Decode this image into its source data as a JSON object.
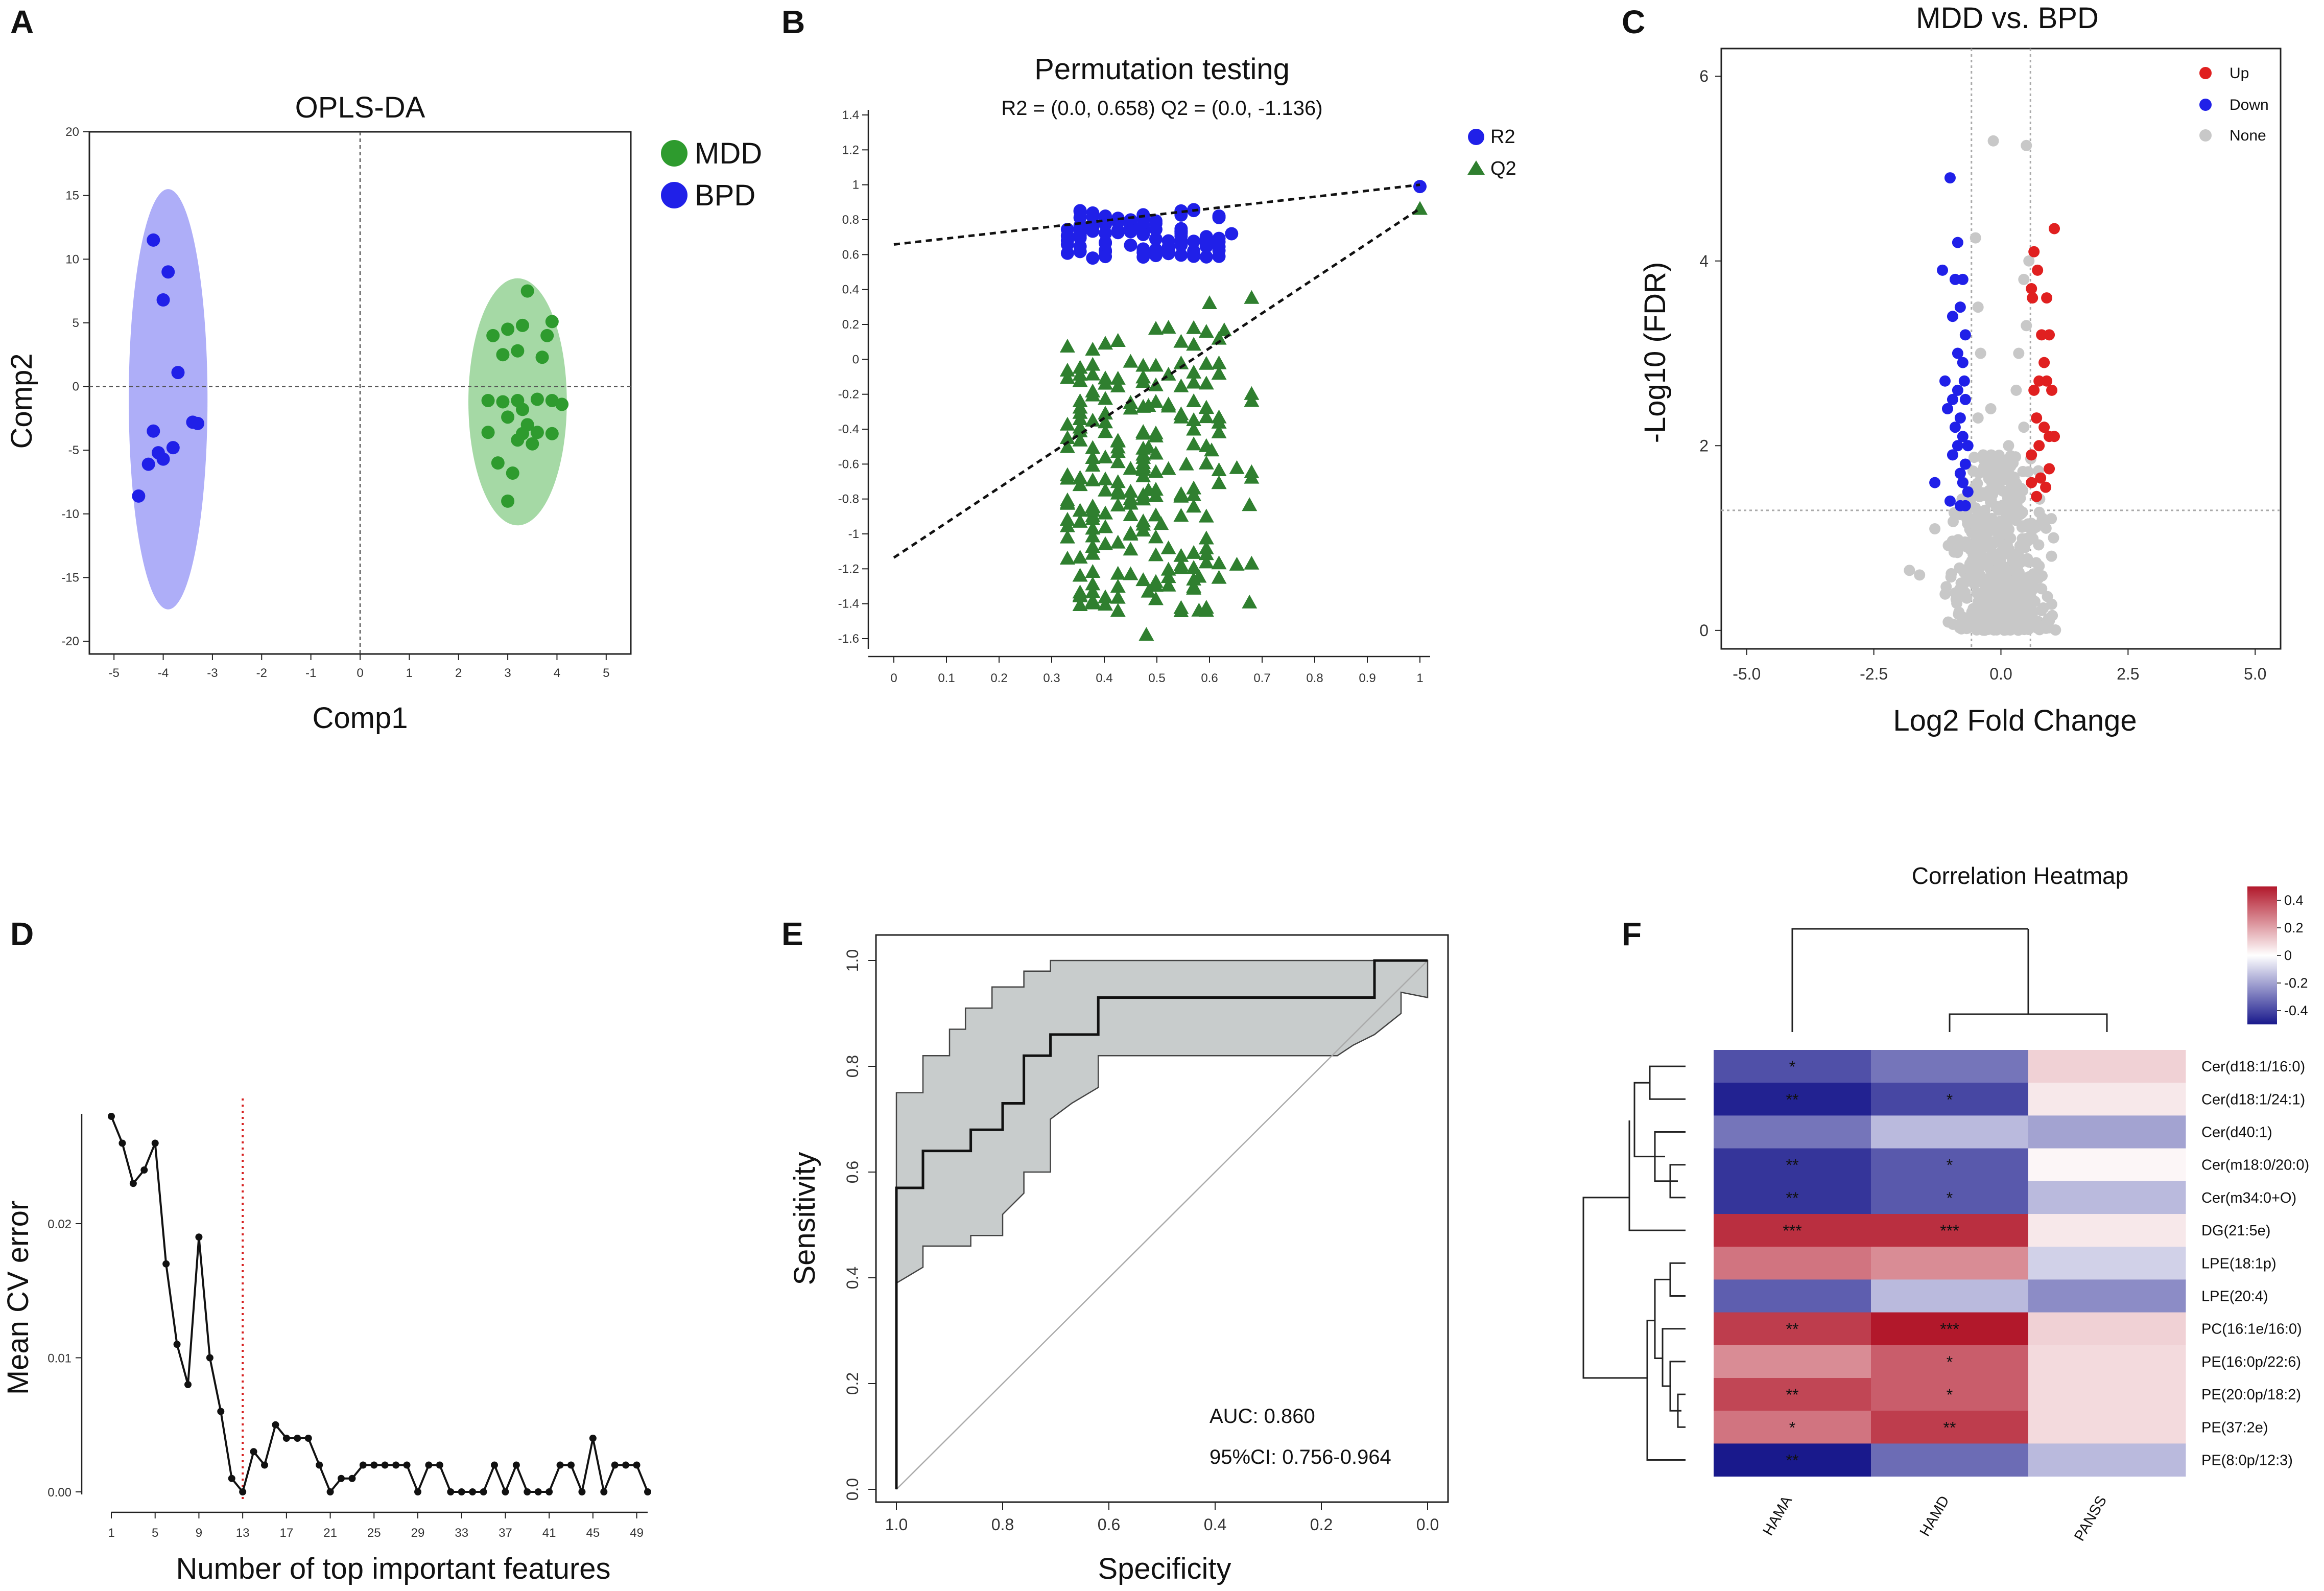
{
  "panels": {
    "A": "A",
    "B": "B",
    "C": "C",
    "D": "D",
    "E": "E",
    "F": "F"
  },
  "chart_data": [
    {
      "panel": "A",
      "type": "scatter",
      "title": "OPLS-DA",
      "xlabel": "Comp1",
      "ylabel": "Comp2",
      "xlim": [
        -5.5,
        5.5
      ],
      "ylim": [
        -21,
        20
      ],
      "xticks": [
        -5,
        -4,
        -3,
        -2,
        -1,
        0,
        1,
        2,
        3,
        4,
        5
      ],
      "yticks": [
        20,
        15,
        10,
        5,
        0,
        -5,
        -10,
        -15,
        -20
      ],
      "legend": "top-right",
      "series": [
        {
          "name": "MDD",
          "color": "#2e9b2e",
          "ellipse": {
            "cx": 3.2,
            "cy": -1.2,
            "rx": 1.0,
            "ry": 9.7
          },
          "points": [
            [
              3.4,
              7.5
            ],
            [
              3.0,
              4.5
            ],
            [
              3.3,
              4.8
            ],
            [
              2.7,
              4.0
            ],
            [
              3.8,
              4.0
            ],
            [
              3.9,
              5.1
            ],
            [
              2.9,
              2.5
            ],
            [
              3.2,
              2.8
            ],
            [
              3.7,
              2.3
            ],
            [
              2.6,
              -1.1
            ],
            [
              2.9,
              -1.2
            ],
            [
              3.2,
              -1.1
            ],
            [
              3.6,
              -1.0
            ],
            [
              3.9,
              -1.1
            ],
            [
              4.1,
              -1.4
            ],
            [
              3.3,
              -1.8
            ],
            [
              3.0,
              -2.4
            ],
            [
              3.4,
              -3.0
            ],
            [
              3.3,
              -3.7
            ],
            [
              3.6,
              -3.6
            ],
            [
              3.9,
              -3.7
            ],
            [
              2.6,
              -3.6
            ],
            [
              3.2,
              -4.2
            ],
            [
              3.5,
              -4.5
            ],
            [
              2.8,
              -6.0
            ],
            [
              3.1,
              -6.8
            ],
            [
              3.0,
              -9.0
            ]
          ]
        },
        {
          "name": "BPD",
          "color": "#2020e8",
          "ellipse": {
            "cx": -3.9,
            "cy": -1.0,
            "rx": 0.8,
            "ry": 16.5
          },
          "points": [
            [
              -4.2,
              11.5
            ],
            [
              -3.9,
              9.0
            ],
            [
              -4.0,
              6.8
            ],
            [
              -3.7,
              1.1
            ],
            [
              -3.4,
              -2.8
            ],
            [
              -3.3,
              -2.9
            ],
            [
              -4.2,
              -3.5
            ],
            [
              -3.8,
              -4.8
            ],
            [
              -4.1,
              -5.2
            ],
            [
              -4.0,
              -5.7
            ],
            [
              -4.3,
              -6.1
            ],
            [
              -4.5,
              -8.6
            ]
          ]
        }
      ]
    },
    {
      "panel": "B",
      "type": "scatter",
      "title": "Permutation testing",
      "subtitle": "R2 = (0.0, 0.658)  Q2 = (0.0, -1.136)",
      "xlim": [
        -0.03,
        1.03
      ],
      "ylim": [
        -1.7,
        1.45
      ],
      "xticks": [
        "0",
        "0.1",
        "0.2",
        "0.3",
        "0.4",
        "0.5",
        "0.6",
        "0.7",
        "0.8",
        "0.9",
        "1"
      ],
      "yticks": [
        "1.4",
        "1.2",
        "1",
        "0.8",
        "0.6",
        "0.4",
        "0.2",
        "0",
        "-0.2",
        "-0.4",
        "-0.6",
        "-0.8",
        "-1",
        "-1.2",
        "-1.4",
        "-1.6"
      ],
      "legend": "top-right",
      "series": [
        {
          "name": "R2",
          "marker": "circle",
          "color": "#2020e8",
          "intercept": 0.658,
          "slope": 0.342
        },
        {
          "name": "Q2",
          "marker": "triangle",
          "color": "#2f7f2f",
          "intercept": -1.136,
          "slope": 2.0
        }
      ],
      "observed": {
        "R2": [
          1.0,
          0.99
        ],
        "Q2": [
          1.0,
          0.86
        ]
      }
    },
    {
      "panel": "C",
      "type": "scatter",
      "title": "MDD vs. BPD",
      "xlabel": "Log2 Fold Change",
      "ylabel": "-Log10 (FDR)",
      "xlim": [
        -5.5,
        5.5
      ],
      "ylim": [
        -0.2,
        6.3
      ],
      "xticks": [
        "-5.0",
        "-2.5",
        "0.0",
        "2.5",
        "5.0"
      ],
      "yticks": [
        "0",
        "2",
        "4",
        "6"
      ],
      "vlines": [
        -0.58,
        0.58
      ],
      "hline": 1.3,
      "legend": "top-right",
      "series": [
        {
          "name": "Up",
          "color": "#e02020",
          "points": [
            [
              0.6,
              3.7
            ],
            [
              0.65,
              4.1
            ],
            [
              0.72,
              3.9
            ],
            [
              0.62,
              3.6
            ],
            [
              0.9,
              3.6
            ],
            [
              1.05,
              4.35
            ],
            [
              0.95,
              3.2
            ],
            [
              0.8,
              3.2
            ],
            [
              0.85,
              2.9
            ],
            [
              0.75,
              2.7
            ],
            [
              0.65,
              2.6
            ],
            [
              0.9,
              2.7
            ],
            [
              1.0,
              2.6
            ],
            [
              0.7,
              2.3
            ],
            [
              0.85,
              2.2
            ],
            [
              0.95,
              2.1
            ],
            [
              1.05,
              2.1
            ],
            [
              0.75,
              2.0
            ],
            [
              0.6,
              1.9
            ],
            [
              0.95,
              1.75
            ],
            [
              0.78,
              1.65
            ],
            [
              0.6,
              1.6
            ],
            [
              0.88,
              1.55
            ],
            [
              0.7,
              1.45
            ]
          ]
        },
        {
          "name": "Down",
          "color": "#2020e8",
          "points": [
            [
              -1.0,
              4.9
            ],
            [
              -0.85,
              4.2
            ],
            [
              -0.9,
              3.8
            ],
            [
              -1.15,
              3.9
            ],
            [
              -0.75,
              3.8
            ],
            [
              -0.8,
              3.5
            ],
            [
              -0.95,
              3.4
            ],
            [
              -0.7,
              3.2
            ],
            [
              -0.85,
              3.0
            ],
            [
              -0.75,
              2.9
            ],
            [
              -1.1,
              2.7
            ],
            [
              -0.72,
              2.7
            ],
            [
              -0.85,
              2.6
            ],
            [
              -0.95,
              2.5
            ],
            [
              -0.7,
              2.5
            ],
            [
              -1.05,
              2.4
            ],
            [
              -0.8,
              2.3
            ],
            [
              -0.9,
              2.2
            ],
            [
              -0.75,
              2.1
            ],
            [
              -0.65,
              2.0
            ],
            [
              -0.85,
              2.0
            ],
            [
              -0.95,
              1.9
            ],
            [
              -0.7,
              1.8
            ],
            [
              -0.8,
              1.7
            ],
            [
              -1.3,
              1.6
            ],
            [
              -0.75,
              1.6
            ],
            [
              -0.65,
              1.5
            ],
            [
              -1.0,
              1.4
            ],
            [
              -0.8,
              1.35
            ],
            [
              -0.7,
              1.35
            ]
          ]
        },
        {
          "name": "None",
          "color": "#c8c8c8"
        }
      ]
    },
    {
      "panel": "D",
      "type": "line",
      "xlabel": "Number of top important features",
      "ylabel": "Mean CV error",
      "xlim": [
        -1,
        53
      ],
      "ylim": [
        -0.001,
        0.029
      ],
      "xticks": [
        "1",
        "5",
        "9",
        "13",
        "17",
        "21",
        "25",
        "29",
        "33",
        "37",
        "41",
        "45",
        "49"
      ],
      "yticks": [
        "0.00",
        "0.01",
        "0.02"
      ],
      "vline": 13,
      "x": [
        1,
        2,
        3,
        4,
        5,
        6,
        7,
        8,
        9,
        10,
        11,
        12,
        13,
        14,
        15,
        16,
        17,
        18,
        19,
        20,
        21,
        22,
        23,
        24,
        25,
        26,
        27,
        28,
        29,
        30,
        31,
        32,
        33,
        34,
        35,
        36,
        37,
        38,
        39,
        40,
        41,
        42,
        43,
        44,
        45,
        46,
        47,
        48,
        49,
        50
      ],
      "values": [
        0.028,
        0.026,
        0.023,
        0.024,
        0.026,
        0.017,
        0.011,
        0.008,
        0.019,
        0.01,
        0.006,
        0.001,
        0.0,
        0.003,
        0.002,
        0.005,
        0.004,
        0.004,
        0.004,
        0.002,
        0.0,
        0.001,
        0.001,
        0.002,
        0.002,
        0.002,
        0.002,
        0.002,
        0.0,
        0.002,
        0.002,
        0.0,
        0.0,
        0.0,
        0.0,
        0.002,
        0.0,
        0.002,
        0.0,
        0.0,
        0.0,
        0.002,
        0.002,
        0.0,
        0.004,
        0.0,
        0.002,
        0.002,
        0.002,
        0.0
      ]
    },
    {
      "panel": "E",
      "type": "line",
      "xlabel": "Specificity",
      "ylabel": "Sensitivity",
      "xlim": [
        1.02,
        -0.02
      ],
      "ylim": [
        -0.02,
        1.02
      ],
      "xticks": [
        "1.0",
        "0.8",
        "0.6",
        "0.4",
        "0.2",
        "0.0"
      ],
      "yticks": [
        "0.0",
        "0.2",
        "0.4",
        "0.6",
        "0.8",
        "1.0"
      ],
      "auc": "AUC: 0.860",
      "ci": "95%CI: 0.756-0.964",
      "roc": [
        [
          1.0,
          0.0
        ],
        [
          1.0,
          0.57
        ],
        [
          0.95,
          0.57
        ],
        [
          0.95,
          0.64
        ],
        [
          0.86,
          0.64
        ],
        [
          0.86,
          0.68
        ],
        [
          0.8,
          0.68
        ],
        [
          0.8,
          0.73
        ],
        [
          0.76,
          0.73
        ],
        [
          0.76,
          0.82
        ],
        [
          0.71,
          0.82
        ],
        [
          0.71,
          0.86
        ],
        [
          0.62,
          0.86
        ],
        [
          0.62,
          0.93
        ],
        [
          0.1,
          0.93
        ],
        [
          0.1,
          1.0
        ],
        [
          0.0,
          1.0
        ]
      ],
      "ci_upper": [
        [
          1.0,
          0.75
        ],
        [
          0.95,
          0.75
        ],
        [
          0.95,
          0.82
        ],
        [
          0.9,
          0.82
        ],
        [
          0.9,
          0.87
        ],
        [
          0.87,
          0.87
        ],
        [
          0.87,
          0.91
        ],
        [
          0.82,
          0.91
        ],
        [
          0.82,
          0.95
        ],
        [
          0.76,
          0.95
        ],
        [
          0.76,
          0.98
        ],
        [
          0.71,
          0.98
        ],
        [
          0.71,
          1.0
        ],
        [
          0.0,
          1.0
        ]
      ],
      "ci_lower": [
        [
          1.0,
          0.39
        ],
        [
          0.95,
          0.42
        ],
        [
          0.95,
          0.46
        ],
        [
          0.86,
          0.46
        ],
        [
          0.86,
          0.48
        ],
        [
          0.8,
          0.48
        ],
        [
          0.8,
          0.52
        ],
        [
          0.76,
          0.56
        ],
        [
          0.76,
          0.6
        ],
        [
          0.71,
          0.6
        ],
        [
          0.71,
          0.7
        ],
        [
          0.67,
          0.73
        ],
        [
          0.62,
          0.76
        ],
        [
          0.62,
          0.82
        ],
        [
          0.17,
          0.82
        ],
        [
          0.14,
          0.84
        ],
        [
          0.1,
          0.86
        ],
        [
          0.05,
          0.9
        ],
        [
          0.05,
          0.94
        ],
        [
          0.0,
          0.93
        ]
      ]
    },
    {
      "panel": "F",
      "type": "heatmap",
      "title": "Correlation Heatmap",
      "columns": [
        "HAMA",
        "HAMD",
        "PANSS"
      ],
      "rows": [
        "Cer(d18:1/16:0)",
        "Cer(d18:1/24:1)",
        "Cer(d40:1)",
        "Cer(m18:0/20:0)",
        "Cer(m34:0+O)",
        "DG(21:5e)",
        "LPE(18:1p)",
        "LPE(20:4)",
        "PC(16:1e/16:0)",
        "PE(16:0p/22:6)",
        "PE(20:0p/18:2)",
        "PE(37:2e)",
        "PE(8:0p/12:3)"
      ],
      "values": [
        [
          -0.38,
          -0.3,
          0.1
        ],
        [
          -0.48,
          -0.4,
          0.05
        ],
        [
          -0.3,
          -0.15,
          -0.2
        ],
        [
          -0.44,
          -0.36,
          0.02
        ],
        [
          -0.44,
          -0.36,
          -0.15
        ],
        [
          0.45,
          0.45,
          0.05
        ],
        [
          0.3,
          0.25,
          -0.1
        ],
        [
          -0.35,
          -0.15,
          -0.25
        ],
        [
          0.42,
          0.5,
          0.1
        ],
        [
          0.25,
          0.35,
          0.08
        ],
        [
          0.4,
          0.35,
          0.08
        ],
        [
          0.3,
          0.42,
          0.08
        ],
        [
          -0.5,
          -0.32,
          -0.15
        ]
      ],
      "stars": [
        [
          "*",
          "",
          ""
        ],
        [
          "**",
          "*",
          ""
        ],
        [
          "",
          "",
          ""
        ],
        [
          "**",
          "*",
          ""
        ],
        [
          "**",
          "*",
          ""
        ],
        [
          "***",
          "***",
          ""
        ],
        [
          "",
          "",
          ""
        ],
        [
          "",
          "",
          ""
        ],
        [
          "**",
          "***",
          ""
        ],
        [
          "",
          "*",
          ""
        ],
        [
          "**",
          "*",
          ""
        ],
        [
          "*",
          "**",
          ""
        ],
        [
          "**",
          "",
          ""
        ]
      ],
      "colorbar_ticks": [
        "0.4",
        "0.2",
        "0",
        "-0.2",
        "-0.4"
      ],
      "colorbar_range": [
        -0.5,
        0.5
      ]
    }
  ]
}
